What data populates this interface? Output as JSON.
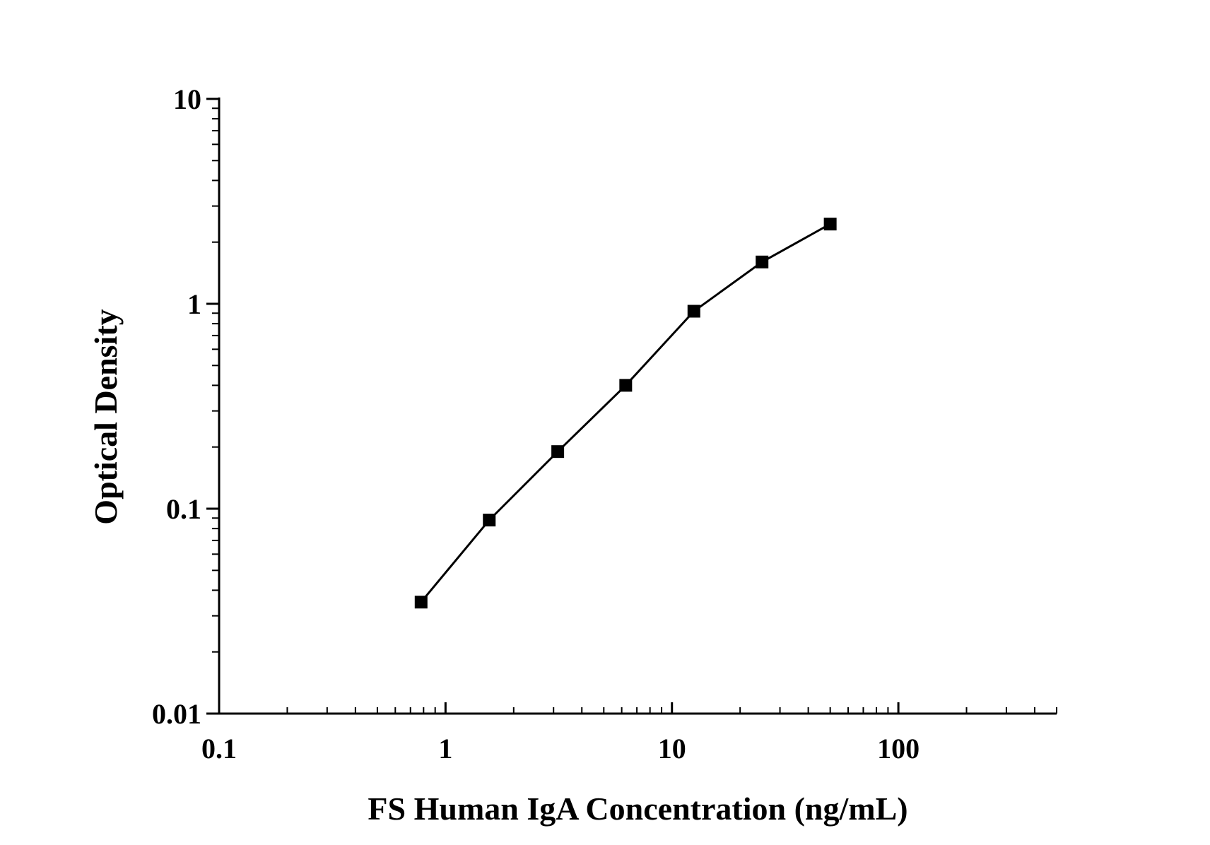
{
  "chart_data": {
    "type": "line",
    "xlabel": "FS Human IgA Concentration (ng/mL)",
    "ylabel": "Optical Density",
    "x_scale": "log",
    "y_scale": "log",
    "xlim": [
      0.1,
      500
    ],
    "ylim": [
      0.01,
      10
    ],
    "x_ticks": [
      0.1,
      1,
      10,
      100
    ],
    "x_tick_labels": [
      "0.1",
      "1",
      "10",
      "100"
    ],
    "y_ticks": [
      0.01,
      0.1,
      1,
      10
    ],
    "y_tick_labels": [
      "0.01",
      "0.1",
      "1",
      "10"
    ],
    "grid": false,
    "legend": "none",
    "marker": "square",
    "color": "#000000",
    "series": [
      {
        "x": [
          0.78,
          1.56,
          3.13,
          6.25,
          12.5,
          25,
          50
        ],
        "y": [
          0.035,
          0.088,
          0.19,
          0.4,
          0.92,
          1.6,
          2.45
        ]
      }
    ]
  }
}
